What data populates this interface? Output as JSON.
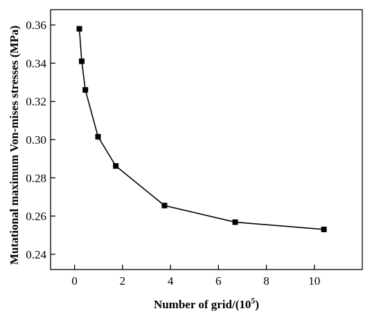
{
  "chart_data": {
    "type": "line",
    "title": "",
    "xlabel": "Number of grid/(10",
    "xlabel_superscript": "5",
    "xlabel_suffix": ")",
    "ylabel": "Mutational maximum Von-mises stresses (MPa)",
    "xlim": [
      -1,
      12
    ],
    "ylim": [
      0.232,
      0.368
    ],
    "xticks": [
      0,
      2,
      4,
      6,
      8,
      10
    ],
    "xtick_labels": [
      "0",
      "2",
      "4",
      "6",
      "8",
      "10"
    ],
    "yticks": [
      0.24,
      0.26,
      0.28,
      0.3,
      0.32,
      0.34,
      0.36
    ],
    "ytick_labels": [
      "0.24",
      "0.26",
      "0.28",
      "0.30",
      "0.32",
      "0.34",
      "0.36"
    ],
    "grid": false,
    "marker": "square",
    "series": [
      {
        "color": "#000000",
        "x": [
          0.2,
          0.3,
          0.45,
          0.98,
          1.72,
          3.75,
          6.7,
          10.4
        ],
        "y": [
          0.358,
          0.341,
          0.326,
          0.3015,
          0.2862,
          0.2655,
          0.2568,
          0.253
        ]
      }
    ]
  }
}
